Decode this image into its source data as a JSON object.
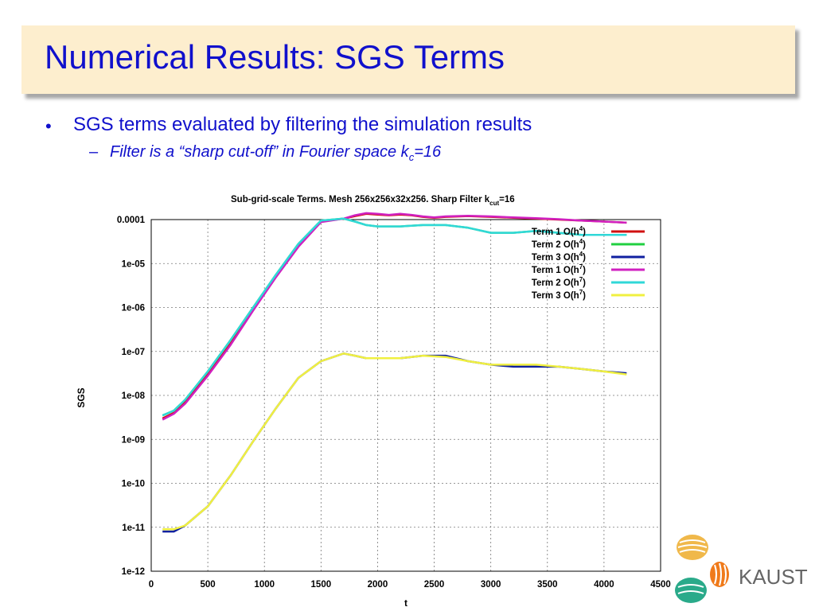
{
  "slide": {
    "title": "Numerical Results: SGS Terms",
    "bullet_marker": "•",
    "bullet": "SGS terms evaluated by filtering the simulation results",
    "sub_dash": "–",
    "sub_prefix": "Filter is a “sharp cut-off” in Fourier space k",
    "sub_subscript": "c",
    "sub_suffix": "=16",
    "logo_text": "KAUST"
  },
  "chart_data": {
    "type": "line",
    "title_main": "Sub-grid-scale Terms. Mesh 256x256x32x256. Sharp Filter k",
    "title_sub": "cut",
    "title_end": "=16",
    "xlabel": "t",
    "ylabel": "SGS",
    "xlim": [
      0,
      4500
    ],
    "ylim_exp": [
      -12,
      -4
    ],
    "log_y": true,
    "grid": true,
    "legend_position": "top-right",
    "x_ticks": [
      "0",
      "500",
      "1000",
      "1500",
      "2000",
      "2500",
      "3000",
      "3500",
      "4000",
      "4500"
    ],
    "y_ticks": [
      "1e-12",
      "1e-11",
      "1e-10",
      "1e-09",
      "1e-08",
      "1e-07",
      "1e-06",
      "1e-05",
      "0.0001"
    ],
    "series": [
      {
        "name": "Term 1 O(h",
        "sup": "4",
        "color": "#d01010",
        "x": [
          100,
          200,
          300,
          500,
          700,
          900,
          1100,
          1300,
          1500,
          1700,
          1800,
          1900,
          2000,
          2100,
          2200,
          2300,
          2400,
          2500,
          2600,
          2800,
          3000,
          3200,
          3400,
          3600,
          3800,
          4000,
          4200
        ],
        "y": [
          3e-09,
          4e-09,
          7e-09,
          3e-08,
          1.5e-07,
          9e-07,
          5e-06,
          2.5e-05,
          9e-05,
          0.000105,
          0.00012,
          0.000135,
          0.00013,
          0.000125,
          0.00013,
          0.000125,
          0.000115,
          0.00011,
          0.000115,
          0.00012,
          0.000115,
          0.00011,
          0.000105,
          0.0001,
          9.5e-05,
          9e-05,
          8.5e-05
        ]
      },
      {
        "name": "Term 2 O(h",
        "sup": "4",
        "color": "#20d040",
        "x": [
          100,
          200,
          300,
          500,
          700,
          900,
          1100,
          1300,
          1500,
          1700,
          1800,
          1900,
          2000,
          2200,
          2400,
          2600,
          2800,
          3000,
          3200,
          3400,
          3600,
          3800,
          4000,
          4200
        ],
        "y": [
          3.5e-09,
          4.5e-09,
          8e-09,
          3.5e-08,
          1.8e-07,
          1e-06,
          5.5e-06,
          2.8e-05,
          9.5e-05,
          0.000105,
          9e-05,
          7.5e-05,
          7e-05,
          7e-05,
          7.5e-05,
          7.5e-05,
          6.5e-05,
          5e-05,
          5e-05,
          5.5e-05,
          5e-05,
          4.5e-05,
          4.5e-05,
          4.5e-05
        ]
      },
      {
        "name": "Term 3 O(h",
        "sup": "4",
        "color": "#1020a0",
        "x": [
          100,
          200,
          300,
          500,
          700,
          900,
          1100,
          1300,
          1500,
          1700,
          1800,
          1900,
          2000,
          2200,
          2400,
          2600,
          2800,
          3000,
          3200,
          3400,
          3600,
          3800,
          4000,
          4200
        ],
        "y": [
          8e-12,
          8e-12,
          1.1e-11,
          3e-11,
          1.5e-10,
          9e-10,
          5e-09,
          2.5e-08,
          6e-08,
          9e-08,
          8e-08,
          7e-08,
          7e-08,
          7e-08,
          8e-08,
          8e-08,
          6e-08,
          5e-08,
          4.5e-08,
          4.5e-08,
          4.5e-08,
          4e-08,
          3.5e-08,
          3.2e-08
        ]
      },
      {
        "name": "Term 1 O(h",
        "sup": "7",
        "color": "#d020c0",
        "x": [
          100,
          200,
          300,
          500,
          700,
          900,
          1100,
          1300,
          1500,
          1700,
          1800,
          1900,
          2000,
          2100,
          2200,
          2300,
          2400,
          2500,
          2600,
          2800,
          3000,
          3200,
          3400,
          3600,
          3800,
          4000,
          4200
        ],
        "y": [
          2.8e-09,
          3.8e-09,
          6.5e-09,
          2.8e-08,
          1.4e-07,
          8.5e-07,
          4.8e-06,
          2.4e-05,
          8.8e-05,
          0.000105,
          0.000125,
          0.00014,
          0.000135,
          0.000128,
          0.000135,
          0.000128,
          0.000118,
          0.000112,
          0.000118,
          0.000122,
          0.000118,
          0.000112,
          0.000108,
          0.000102,
          9.5e-05,
          9e-05,
          8.5e-05
        ]
      },
      {
        "name": "Term 2 O(h",
        "sup": "7",
        "color": "#30d8d8",
        "x": [
          100,
          200,
          300,
          500,
          700,
          900,
          1100,
          1300,
          1500,
          1700,
          1800,
          1900,
          2000,
          2200,
          2400,
          2600,
          2800,
          3000,
          3200,
          3400,
          3600,
          3800,
          4000,
          4200
        ],
        "y": [
          3.5e-09,
          4.5e-09,
          8e-09,
          3.5e-08,
          1.8e-07,
          1e-06,
          5.5e-06,
          2.8e-05,
          9.5e-05,
          0.000105,
          9e-05,
          7.5e-05,
          7e-05,
          7e-05,
          7.5e-05,
          7.5e-05,
          6.5e-05,
          5e-05,
          5e-05,
          5.5e-05,
          5e-05,
          4.5e-05,
          4.5e-05,
          4.5e-05
        ]
      },
      {
        "name": "Term 3 O(h",
        "sup": "7",
        "color": "#f0f040",
        "x": [
          100,
          200,
          300,
          500,
          700,
          900,
          1100,
          1300,
          1500,
          1700,
          1800,
          1900,
          2000,
          2200,
          2400,
          2600,
          2800,
          3000,
          3200,
          3400,
          3600,
          3800,
          4000,
          4200
        ],
        "y": [
          9e-12,
          9e-12,
          1.1e-11,
          3e-11,
          1.5e-10,
          9e-10,
          5e-09,
          2.5e-08,
          6e-08,
          9e-08,
          8e-08,
          7e-08,
          7e-08,
          7e-08,
          8e-08,
          7.5e-08,
          6e-08,
          5e-08,
          5e-08,
          5e-08,
          4.5e-08,
          4e-08,
          3.5e-08,
          3e-08
        ]
      }
    ]
  }
}
